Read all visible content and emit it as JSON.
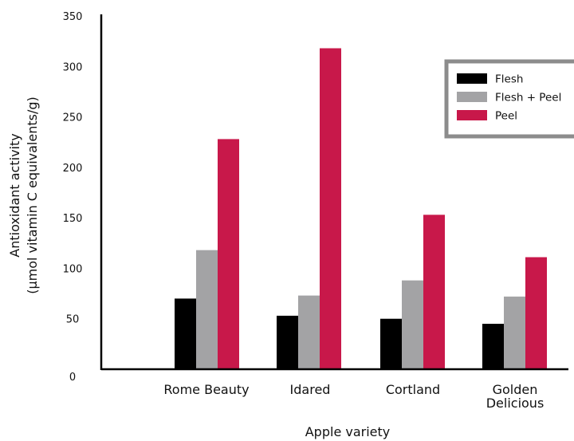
{
  "chart_data": {
    "type": "bar",
    "title": "",
    "xlabel": "Apple variety",
    "ylabel_lines": [
      "Antioxidant activity",
      "(µmol vitamin C equivalents/g)"
    ],
    "ylim": [
      0,
      350
    ],
    "yticks": [
      0,
      50,
      100,
      150,
      200,
      250,
      300,
      350
    ],
    "categories": [
      {
        "lines": [
          "Rome Beauty"
        ]
      },
      {
        "lines": [
          "Idared"
        ]
      },
      {
        "lines": [
          "Cortland"
        ]
      },
      {
        "lines": [
          "Golden",
          "Delicious"
        ]
      }
    ],
    "series": [
      {
        "name": "Flesh",
        "color": "#000000",
        "values": [
          70,
          53,
          50,
          45
        ]
      },
      {
        "name": "Flesh + Peel",
        "color": "#a3a3a5",
        "values": [
          118,
          73,
          88,
          72
        ]
      },
      {
        "name": "Peel",
        "color": "#c8184a",
        "values": [
          228,
          318,
          153,
          111
        ]
      }
    ],
    "legend_position": "top-right",
    "grid": false
  }
}
